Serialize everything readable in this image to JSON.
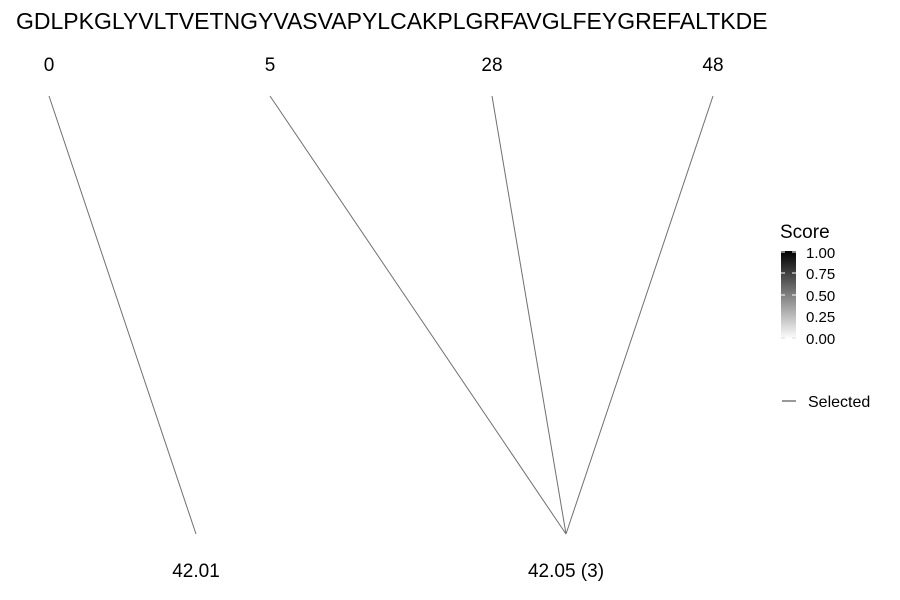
{
  "sequence": "GDLPKGLYVLTVETNGYVASVAPYLCAKPLGRFAVGLFEYGREFALTKDE",
  "top_nodes": [
    {
      "id": "t0",
      "label": "0"
    },
    {
      "id": "t1",
      "label": "5"
    },
    {
      "id": "t2",
      "label": "28"
    },
    {
      "id": "t3",
      "label": "48"
    }
  ],
  "bottom_nodes": [
    {
      "id": "b0",
      "label": "42.01"
    },
    {
      "id": "b1",
      "label": "42.05 (3)"
    }
  ],
  "edges": [
    {
      "from": "t0",
      "to": "b0"
    },
    {
      "from": "t1",
      "to": "b1"
    },
    {
      "from": "t2",
      "to": "b1"
    },
    {
      "from": "t3",
      "to": "b1"
    }
  ],
  "legend": {
    "title": "Score",
    "ticks": [
      "1.00",
      "0.75",
      "0.50",
      "0.25",
      "0.00"
    ],
    "gradient_top_color": "#000000",
    "gradient_bottom_color": "#ffffff",
    "item_label": "Selected",
    "edge_color": "#707070"
  }
}
